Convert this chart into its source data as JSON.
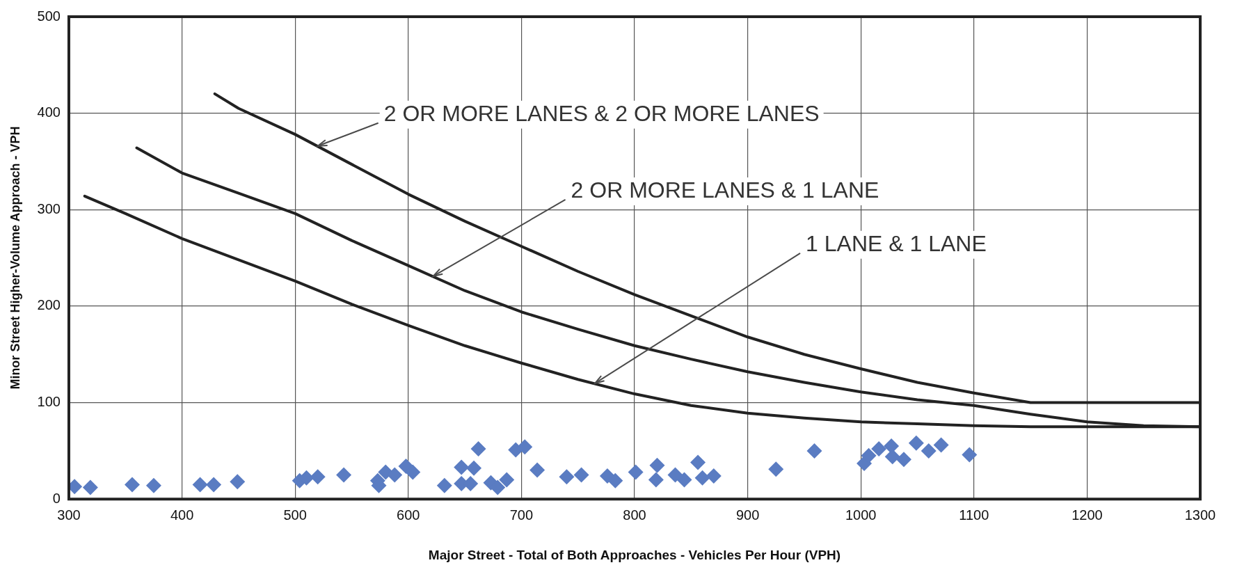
{
  "chart_data": {
    "type": "scatter",
    "xlabel": "Major Street - Total of Both Approaches - Vehicles Per Hour (VPH)",
    "ylabel": "Minor Street Higher-Volume Approach - VPH",
    "xlim": [
      300,
      1300
    ],
    "xticks": [
      300,
      400,
      500,
      600,
      700,
      800,
      900,
      1000,
      1100,
      1200,
      1300
    ],
    "ylim": [
      0,
      500
    ],
    "yticks": [
      0,
      100,
      200,
      300,
      400,
      500
    ],
    "grid": true,
    "legend": false,
    "marker": "diamond",
    "annotations": [
      {
        "text": "2 OR MORE LANES & 2 OR MORE LANES",
        "x": 520,
        "y": 366
      },
      {
        "text": "2 OR MORE LANES & 1 LANE",
        "x": 622,
        "y": 231
      },
      {
        "text": "1 LANE & 1 LANE",
        "x": 765,
        "y": 120
      }
    ],
    "series": [
      {
        "type": "line",
        "color": "#222222",
        "line_style": "solid",
        "marker": "none",
        "x": [
          429,
          450,
          500,
          550,
          600,
          650,
          700,
          750,
          800,
          850,
          900,
          950,
          1000,
          1050,
          1100,
          1150,
          1300
        ],
        "values": [
          420,
          405,
          378,
          347,
          316,
          288,
          262,
          236,
          212,
          190,
          168,
          150,
          135,
          121,
          110,
          100,
          100
        ]
      },
      {
        "type": "line",
        "color": "#222222",
        "line_style": "solid",
        "marker": "none",
        "x": [
          360,
          400,
          450,
          500,
          550,
          600,
          650,
          700,
          750,
          800,
          850,
          900,
          950,
          1000,
          1050,
          1100,
          1150,
          1200,
          1250,
          1300
        ],
        "values": [
          364,
          338,
          317,
          296,
          268,
          242,
          216,
          194,
          176,
          159,
          145,
          132,
          121,
          111,
          103,
          97,
          88,
          80,
          76,
          75
        ]
      },
      {
        "type": "line",
        "color": "#222222",
        "line_style": "solid",
        "marker": "none",
        "x": [
          314,
          350,
          400,
          450,
          500,
          550,
          600,
          650,
          700,
          750,
          800,
          850,
          900,
          950,
          1000,
          1050,
          1100,
          1150,
          1300
        ],
        "values": [
          314,
          296,
          270,
          248,
          226,
          202,
          180,
          159,
          141,
          124,
          109,
          97,
          89,
          84,
          80,
          78,
          76,
          75,
          75
        ]
      },
      {
        "type": "scatter",
        "color": "#5a7cc2",
        "x": [
          305,
          319,
          356,
          375,
          416,
          428,
          449,
          504,
          510,
          520,
          543,
          573,
          574,
          580,
          588,
          598,
          604,
          632,
          647,
          658,
          662,
          647,
          655,
          673,
          679,
          687,
          695,
          703,
          714,
          740,
          753,
          776,
          783,
          801,
          820,
          819,
          836,
          844,
          856,
          860,
          870,
          925,
          959,
          1003,
          1007,
          1016,
          1027,
          1028,
          1038,
          1049,
          1060,
          1071,
          1096
        ],
        "values": [
          13,
          12,
          15,
          14,
          15,
          15,
          18,
          19,
          22,
          23,
          25,
          19,
          14,
          28,
          25,
          34,
          28,
          14,
          33,
          32,
          52,
          16,
          16,
          17,
          12,
          20,
          51,
          54,
          30,
          23,
          25,
          24,
          19,
          28,
          35,
          20,
          25,
          20,
          38,
          22,
          24,
          31,
          50,
          37,
          45,
          52,
          55,
          44,
          41,
          58,
          50,
          56,
          46
        ]
      }
    ]
  }
}
